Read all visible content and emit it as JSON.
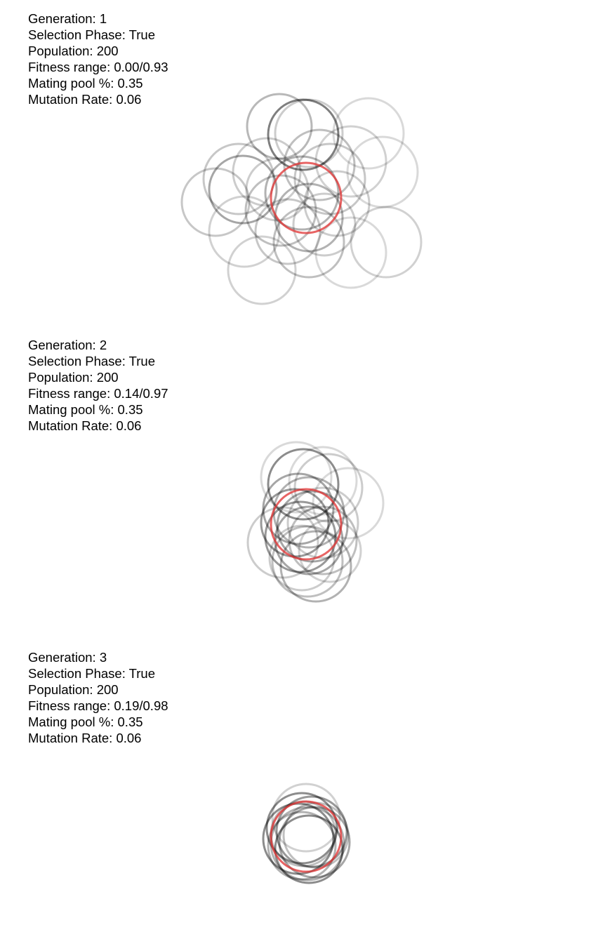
{
  "generations": [
    {
      "generation": "1",
      "selection_phase": "True",
      "population": "200",
      "fitness_range": "0.00/0.93",
      "mating_pool_pct": "0.35",
      "mutation_rate": "0.06"
    },
    {
      "generation": "2",
      "selection_phase": "True",
      "population": "200",
      "fitness_range": "0.14/0.97",
      "mating_pool_pct": "0.35",
      "mutation_rate": "0.06"
    },
    {
      "generation": "3",
      "selection_phase": "True",
      "population": "200",
      "fitness_range": "0.19/0.98",
      "mating_pool_pct": "0.35",
      "mutation_rate": "0.06"
    }
  ],
  "labels": {
    "generation": "Generation: ",
    "selection_phase": "Selection Phase: ",
    "population": "Population: ",
    "fitness_range": "Fitness range: ",
    "mating_pool_pct": "Mating pool %: ",
    "mutation_rate": "Mutation Rate: "
  },
  "colors": {
    "target": "#e03030",
    "candidate": "#000000"
  }
}
